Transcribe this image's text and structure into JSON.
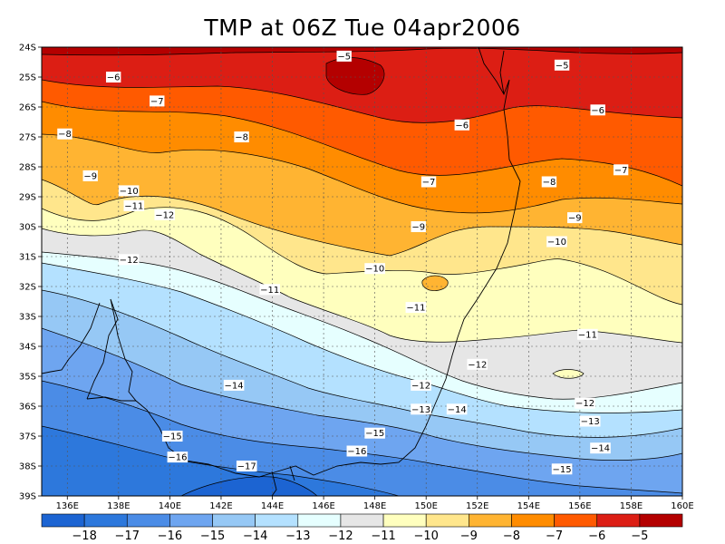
{
  "map": {
    "title": "TMP at 06Z Tue 04apr2006",
    "lat_labels": [
      "24S",
      "25S",
      "26S",
      "27S",
      "28S",
      "29S",
      "30S",
      "31S",
      "32S",
      "33S",
      "34S",
      "35S",
      "36S",
      "37S",
      "38S",
      "39S"
    ],
    "lon_labels": [
      "136E",
      "138E",
      "140E",
      "142E",
      "144E",
      "146E",
      "148E",
      "150E",
      "152E",
      "154E",
      "156E",
      "158E",
      "160E"
    ],
    "contour_labels": [
      {
        "text": "-5",
        "lon": 146.8,
        "lat": 24.3
      },
      {
        "text": "-5",
        "lon": 155.3,
        "lat": 24.6
      },
      {
        "text": "-6",
        "lon": 137.8,
        "lat": 25.0
      },
      {
        "text": "-6",
        "lon": 151.4,
        "lat": 26.6
      },
      {
        "text": "-6",
        "lon": 156.7,
        "lat": 26.1
      },
      {
        "text": "-7",
        "lon": 139.5,
        "lat": 25.8
      },
      {
        "text": "-7",
        "lon": 150.1,
        "lat": 28.5
      },
      {
        "text": "-7",
        "lon": 157.6,
        "lat": 28.1
      },
      {
        "text": "-8",
        "lon": 135.9,
        "lat": 26.9
      },
      {
        "text": "-8",
        "lon": 142.8,
        "lat": 27.0
      },
      {
        "text": "-8",
        "lon": 154.8,
        "lat": 28.5
      },
      {
        "text": "-9",
        "lon": 136.9,
        "lat": 28.3
      },
      {
        "text": "-9",
        "lon": 149.7,
        "lat": 30.0
      },
      {
        "text": "-9",
        "lon": 155.8,
        "lat": 29.7
      },
      {
        "text": "-10",
        "lon": 138.4,
        "lat": 28.8
      },
      {
        "text": "-10",
        "lon": 148.0,
        "lat": 31.4
      },
      {
        "text": "-10",
        "lon": 155.1,
        "lat": 30.5
      },
      {
        "text": "-11",
        "lon": 138.6,
        "lat": 29.3
      },
      {
        "text": "-11",
        "lon": 143.9,
        "lat": 32.1
      },
      {
        "text": "-11",
        "lon": 149.6,
        "lat": 32.7
      },
      {
        "text": "-11",
        "lon": 156.3,
        "lat": 33.6
      },
      {
        "text": "-12",
        "lon": 139.8,
        "lat": 29.6
      },
      {
        "text": "-12",
        "lon": 138.4,
        "lat": 31.1
      },
      {
        "text": "-12",
        "lon": 152.0,
        "lat": 34.6
      },
      {
        "text": "-12",
        "lon": 149.8,
        "lat": 35.3
      },
      {
        "text": "-12",
        "lon": 156.2,
        "lat": 35.9
      },
      {
        "text": "-13",
        "lon": 149.8,
        "lat": 36.1
      },
      {
        "text": "-13",
        "lon": 156.4,
        "lat": 36.5
      },
      {
        "text": "-14",
        "lon": 142.5,
        "lat": 35.3
      },
      {
        "text": "-14",
        "lon": 151.2,
        "lat": 36.1
      },
      {
        "text": "-14",
        "lon": 156.8,
        "lat": 37.4
      },
      {
        "text": "-15",
        "lon": 140.1,
        "lat": 37.0
      },
      {
        "text": "-15",
        "lon": 148.0,
        "lat": 36.9
      },
      {
        "text": "-15",
        "lon": 155.3,
        "lat": 38.1
      },
      {
        "text": "-16",
        "lon": 140.3,
        "lat": 37.7
      },
      {
        "text": "-16",
        "lon": 147.3,
        "lat": 37.5
      },
      {
        "text": "-17",
        "lon": 143.0,
        "lat": 38.0
      }
    ],
    "colorbar": {
      "labels": [
        "-18",
        "-17",
        "-16",
        "-15",
        "-14",
        "-13",
        "-12",
        "-11",
        "-10",
        "-9",
        "-8",
        "-7",
        "-6",
        "-5"
      ],
      "colors": [
        "#1c64d2",
        "#2d78dc",
        "#4b8ce6",
        "#6ea5f0",
        "#96c8f5",
        "#b4e1ff",
        "#e6ffff",
        "#e6e6e6",
        "#ffffbe",
        "#ffe68c",
        "#ffb432",
        "#ff8c00",
        "#ff5a00",
        "#dc1e14",
        "#b40000"
      ]
    }
  }
}
